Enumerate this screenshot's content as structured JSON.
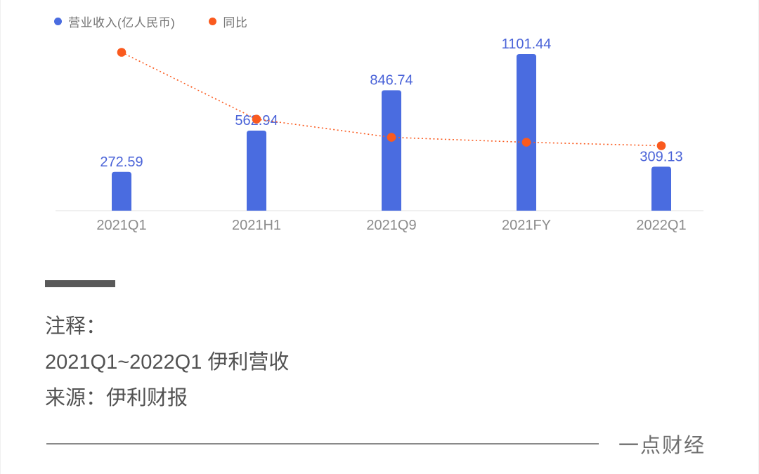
{
  "legend": {
    "items": [
      {
        "label": "营业收入(亿人民币)",
        "color": "#4a6ce0"
      },
      {
        "label": "同比",
        "color": "#fa5a1e"
      }
    ]
  },
  "chart_data": {
    "type": "bar",
    "categories": [
      "2021Q1",
      "2021H1",
      "2021Q9",
      "2021FY",
      "2022Q1"
    ],
    "bar_series": {
      "name": "营业收入(亿人民币)",
      "values": [
        272.59,
        562.94,
        846.74,
        1101.44,
        309.13
      ],
      "color": "#4a6ce0",
      "labels_shown": true
    },
    "line_series": {
      "name": "同比",
      "values_estimated_percent": [
        32.5,
        18.9,
        15.2,
        14.2,
        13.5
      ],
      "color": "#fa5a1e",
      "style": "dotted",
      "labels_shown": false
    },
    "title": "",
    "xlabel": "",
    "ylabel": "",
    "ylim": [
      0,
      1150
    ],
    "grid": false,
    "legend_position": "top-left",
    "value_label_color": "#4a63d8",
    "axis_label_color": "#8c8c8c",
    "baseline_color": "#ececec"
  },
  "notes": {
    "heading": "注释：",
    "line1": "2021Q1~2022Q1 伊利营收",
    "line2": "来源：伊利财报"
  },
  "footer": {
    "brand": "一点财经"
  }
}
